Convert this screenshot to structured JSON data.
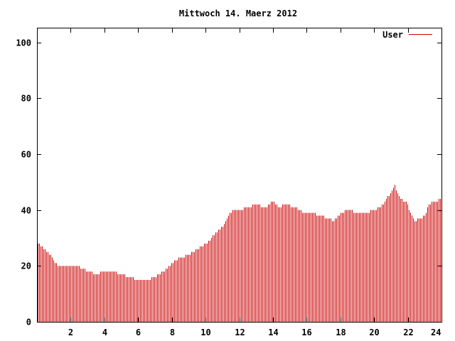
{
  "chart_data": {
    "type": "bar",
    "title": "Mittwoch 14. Maerz 2012",
    "xlabel": "",
    "ylabel": "",
    "xlim": [
      0,
      24
    ],
    "ylim": [
      0,
      105
    ],
    "x_ticks": [
      2,
      4,
      6,
      8,
      10,
      12,
      14,
      16,
      18,
      20,
      22,
      24
    ],
    "y_ticks": [
      0,
      20,
      40,
      60,
      80,
      100
    ],
    "legend_position": "top-right",
    "grid": false,
    "series": [
      {
        "name": "User",
        "color": "#cc0000",
        "keyframes": [
          [
            0.0,
            28
          ],
          [
            0.3,
            27
          ],
          [
            0.6,
            25
          ],
          [
            0.9,
            23
          ],
          [
            1.2,
            20
          ],
          [
            1.5,
            19.5
          ],
          [
            2.0,
            20
          ],
          [
            2.5,
            19.5
          ],
          [
            3.0,
            18
          ],
          [
            3.5,
            17
          ],
          [
            4.0,
            18
          ],
          [
            4.5,
            18
          ],
          [
            5.0,
            17
          ],
          [
            5.5,
            16
          ],
          [
            6.0,
            15
          ],
          [
            6.5,
            15
          ],
          [
            7.0,
            16
          ],
          [
            7.5,
            18
          ],
          [
            8.0,
            21
          ],
          [
            8.5,
            23
          ],
          [
            9.0,
            24
          ],
          [
            9.5,
            26
          ],
          [
            10.0,
            28
          ],
          [
            10.5,
            31
          ],
          [
            11.0,
            34
          ],
          [
            11.3,
            38
          ],
          [
            11.6,
            40
          ],
          [
            12.0,
            40
          ],
          [
            12.5,
            41
          ],
          [
            13.0,
            42
          ],
          [
            13.5,
            41
          ],
          [
            14.0,
            43
          ],
          [
            14.3,
            41
          ],
          [
            14.8,
            42
          ],
          [
            15.3,
            41
          ],
          [
            15.8,
            39
          ],
          [
            16.3,
            39
          ],
          [
            16.8,
            38
          ],
          [
            17.3,
            37
          ],
          [
            17.6,
            36
          ],
          [
            18.0,
            39
          ],
          [
            18.5,
            40
          ],
          [
            19.0,
            39
          ],
          [
            19.5,
            39
          ],
          [
            20.0,
            40
          ],
          [
            20.5,
            42
          ],
          [
            20.8,
            45
          ],
          [
            21.0,
            46
          ],
          [
            21.2,
            49
          ],
          [
            21.5,
            44
          ],
          [
            21.9,
            43
          ],
          [
            22.2,
            38
          ],
          [
            22.4,
            36
          ],
          [
            22.7,
            37
          ],
          [
            23.0,
            38
          ],
          [
            23.2,
            42
          ],
          [
            23.5,
            43
          ],
          [
            24.0,
            44
          ]
        ]
      }
    ]
  }
}
